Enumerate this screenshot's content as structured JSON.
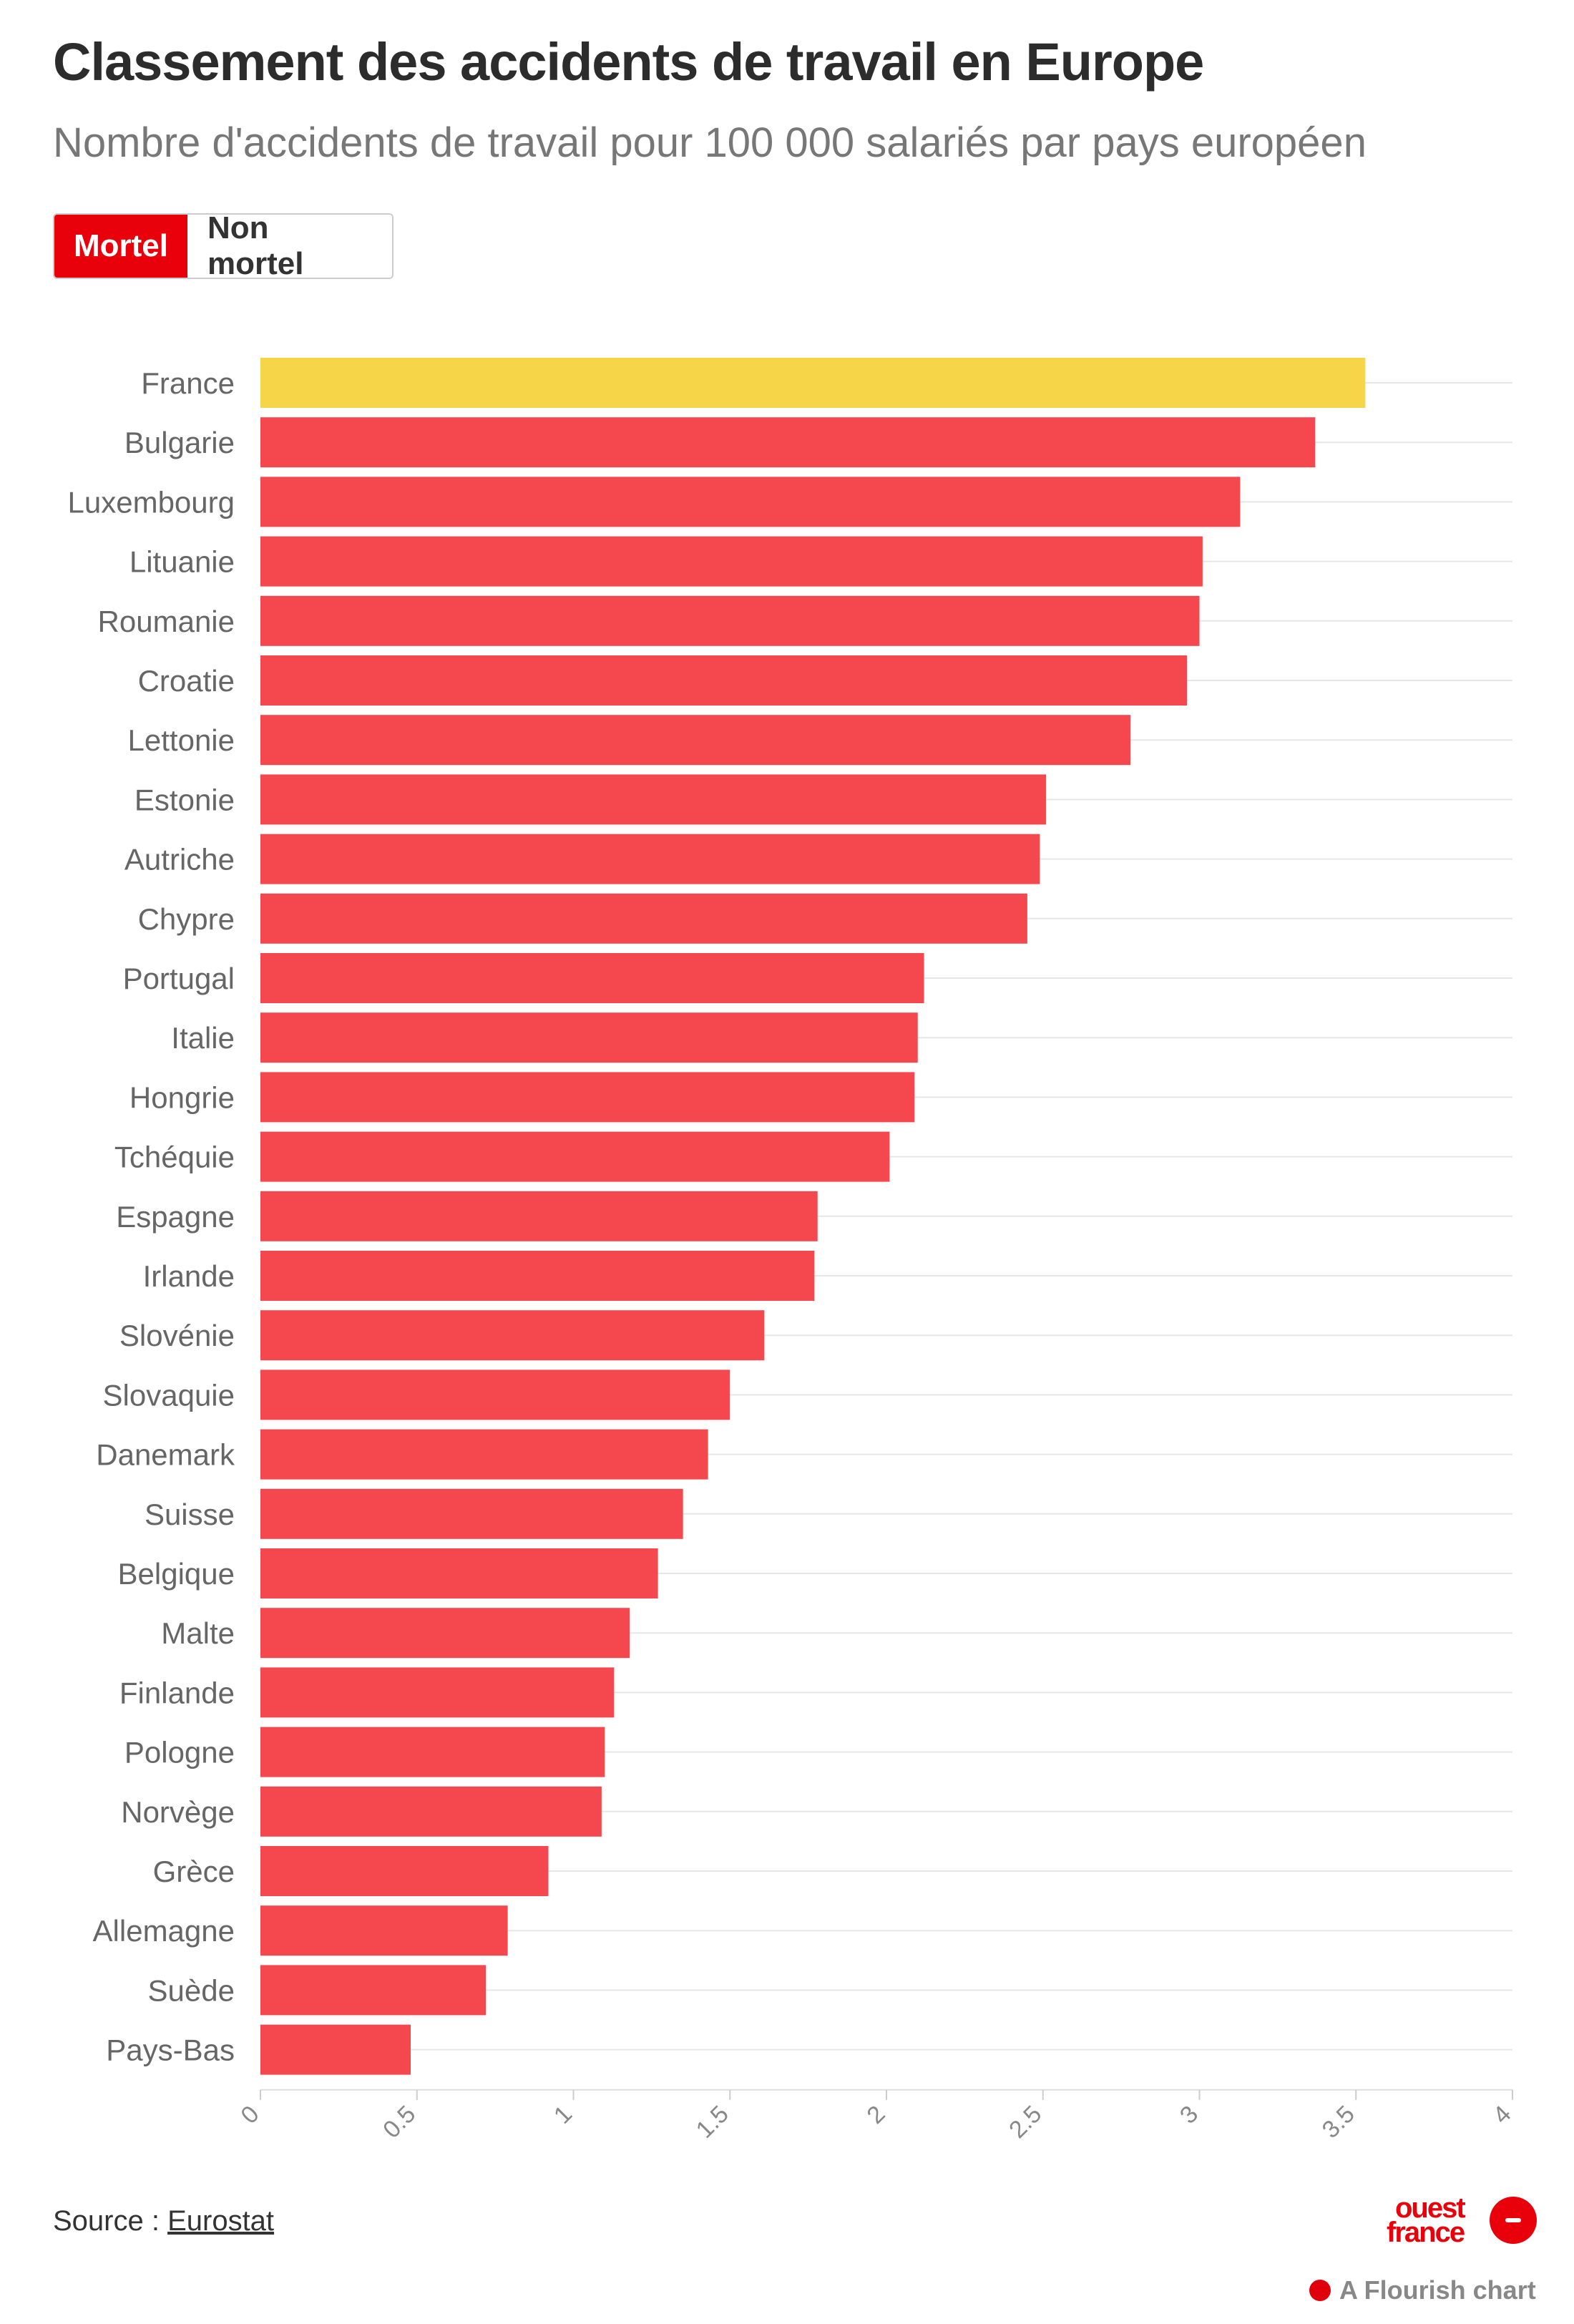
{
  "title": "Classement des accidents de travail en Europe",
  "subtitle": "Nombre d'accidents de travail pour 100 000 salariés par pays européen",
  "toggle": {
    "active_label": "Mortel",
    "inactive_label": "Non mortel"
  },
  "source": {
    "prefix": "Source : ",
    "link_label": "Eurostat"
  },
  "brand": {
    "line1": "ouest",
    "line2": "france"
  },
  "footer": {
    "flourish_label": "A Flourish chart"
  },
  "colors": {
    "highlight": "#f7d548",
    "bar": "#f5484e",
    "accent": "#e8000b"
  },
  "chart_data": {
    "type": "bar",
    "orientation": "horizontal",
    "title": "",
    "xlabel": "",
    "ylabel": "",
    "xlim": [
      0,
      4
    ],
    "grid": true,
    "highlight": "France",
    "categories": [
      "France",
      "Bulgarie",
      "Luxembourg",
      "Lituanie",
      "Roumanie",
      "Croatie",
      "Lettonie",
      "Estonie",
      "Autriche",
      "Chypre",
      "Portugal",
      "Italie",
      "Hongrie",
      "Tchéquie",
      "Espagne",
      "Irlande",
      "Slovénie",
      "Slovaquie",
      "Danemark",
      "Suisse",
      "Belgique",
      "Malte",
      "Finlande",
      "Pologne",
      "Norvège",
      "Grèce",
      "Allemagne",
      "Suède",
      "Pays-Bas"
    ],
    "values": [
      3.53,
      3.37,
      3.13,
      3.01,
      3.0,
      2.96,
      2.78,
      2.51,
      2.49,
      2.45,
      2.12,
      2.1,
      2.09,
      2.01,
      1.78,
      1.77,
      1.61,
      1.5,
      1.43,
      1.35,
      1.27,
      1.18,
      1.13,
      1.1,
      1.09,
      0.92,
      0.79,
      0.72,
      0.48
    ],
    "ticks": [
      "0",
      "0.5",
      "1",
      "1.5",
      "2",
      "2.5",
      "3",
      "3.5",
      "4"
    ]
  }
}
